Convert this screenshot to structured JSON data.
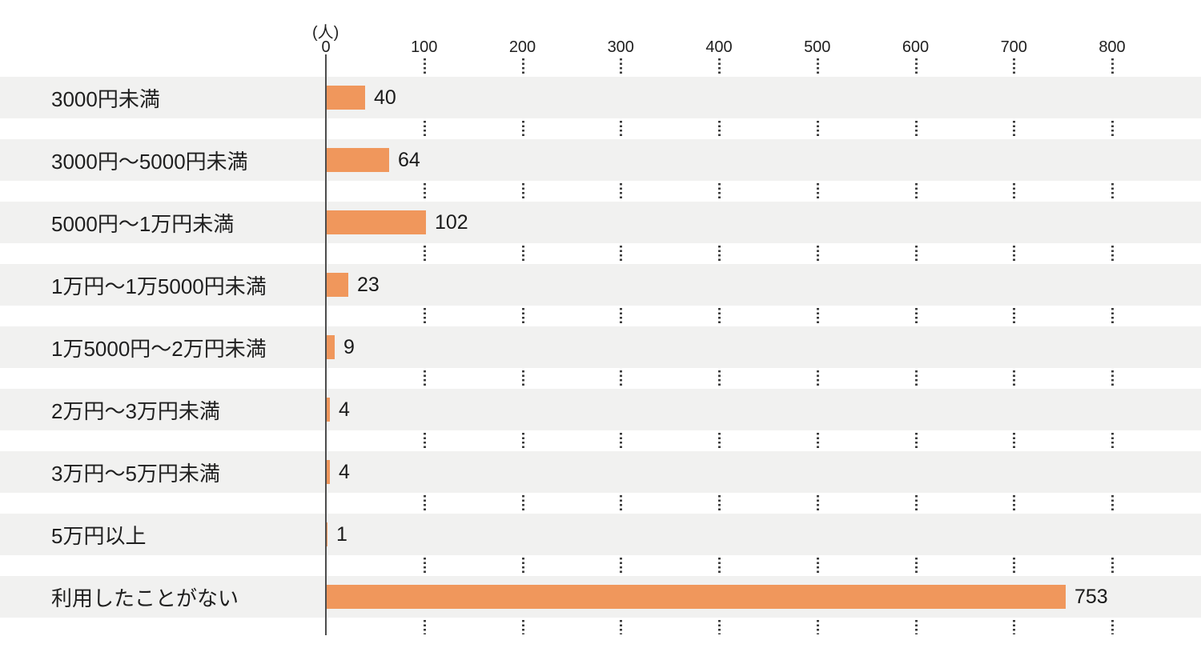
{
  "chart_data": {
    "type": "bar",
    "orientation": "horizontal",
    "title": "",
    "unit_label": "(人)",
    "xlabel": "",
    "ylabel": "",
    "xlim": [
      0,
      800
    ],
    "ticks": [
      0,
      100,
      200,
      300,
      400,
      500,
      600,
      700,
      800
    ],
    "grid": "dotted-vertical-in-gaps",
    "legend": "none",
    "categories": [
      "3000円未満",
      "3000円〜5000円未満",
      "5000円〜1万円未満",
      "1万円〜1万5000円未満",
      "1万5000円〜2万円未満",
      "2万円〜3万円未満",
      "3万円〜5万円未満",
      "5万円以上",
      "利用したことがない"
    ],
    "values": [
      40,
      64,
      102,
      23,
      9,
      4,
      4,
      1,
      753
    ],
    "colors": {
      "bar": "#F0975C",
      "row_band": "#F1F1F0",
      "text": "#1F1F1F",
      "axis_line": "#4D4D4D",
      "grid_dot": "#3C3C3C",
      "background": "#FFFFFF"
    }
  }
}
